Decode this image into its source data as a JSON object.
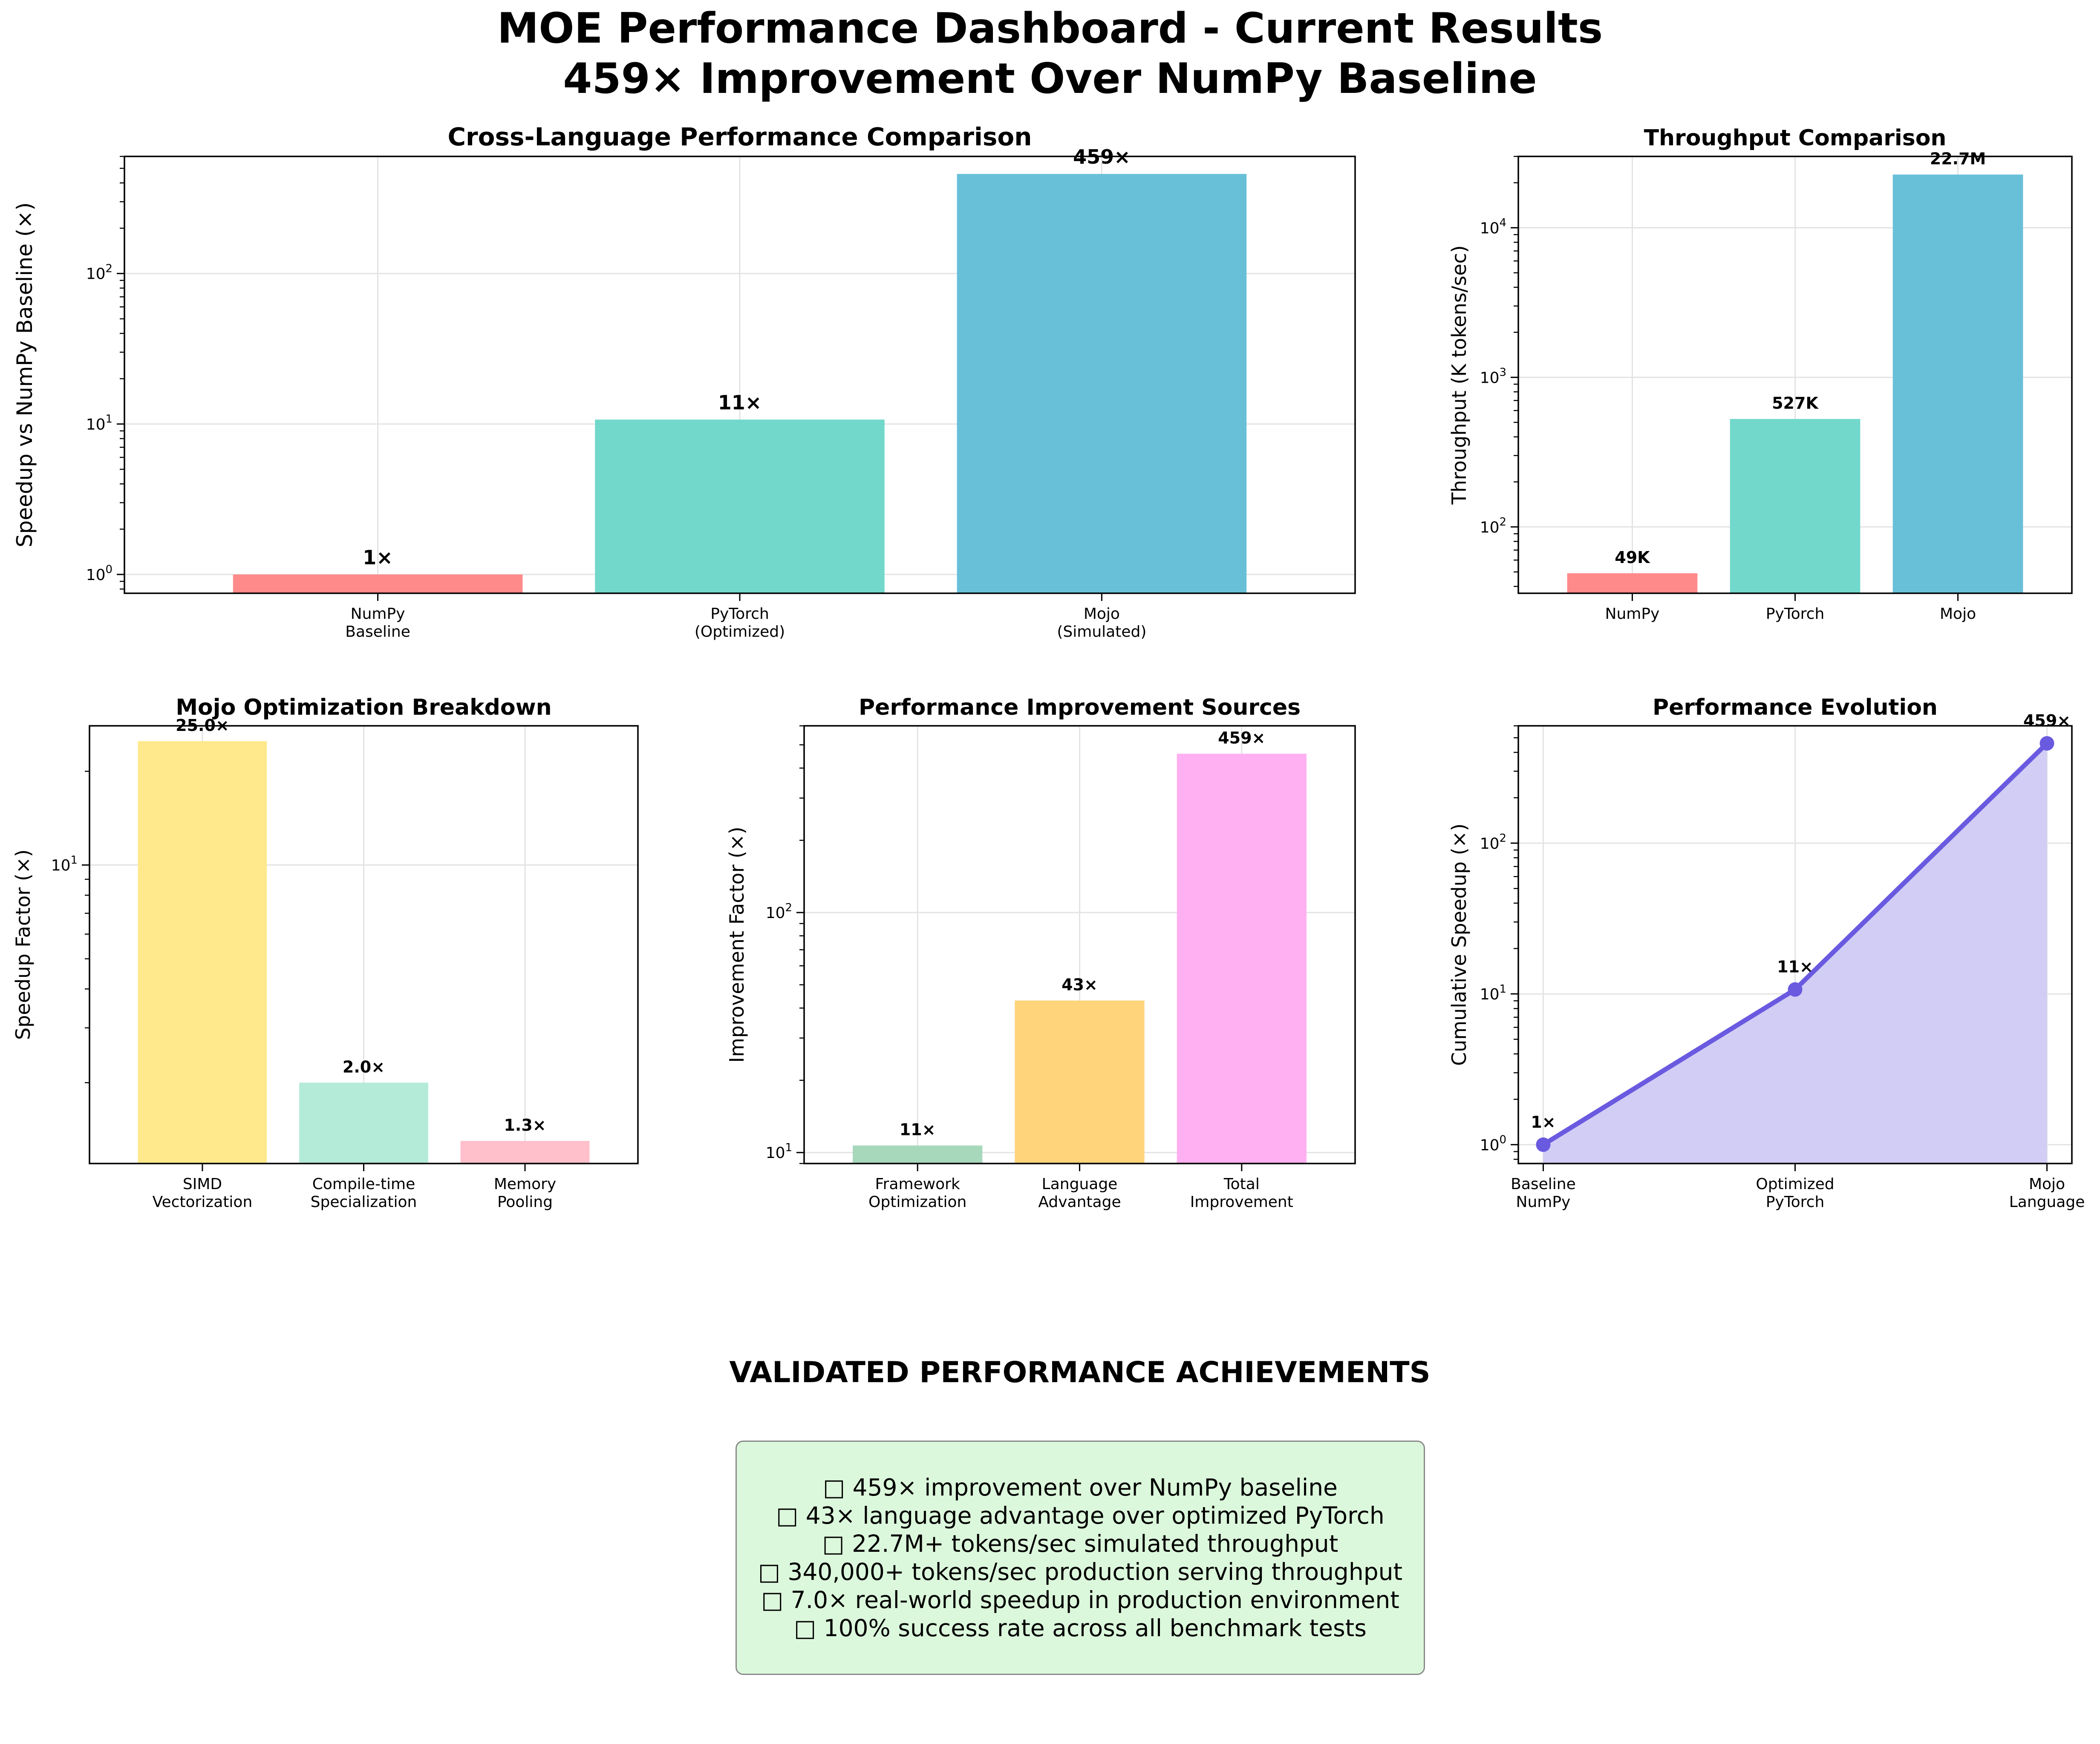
{
  "title_line1": "MOE Performance Dashboard - Current Results",
  "title_line2": "459× Improvement Over NumPy Baseline",
  "achievements": {
    "heading": "VALIDATED PERFORMANCE ACHIEVEMENTS",
    "lines": [
      "□ 459× improvement over NumPy baseline",
      "□ 43× language advantage over optimized PyTorch",
      "□ 22.7M+ tokens/sec simulated throughput",
      "□ 340,000+ tokens/sec production serving throughput",
      "□ 7.0× real-world speedup in production environment",
      "□ 100% success rate across all benchmark tests"
    ]
  },
  "colors": {
    "red": "#ff8a8a",
    "teal": "#72d8cc",
    "blue": "#68c0d8",
    "yellow": "#ffe98c",
    "mint": "#b4ead8",
    "pink": "#ffc0cb",
    "green": "#a8d8bc",
    "orange": "#ffd47a",
    "magenta": "#ffb0f2",
    "purple_line": "#6a5ae0",
    "purple_fill": "#cfcaf4"
  },
  "chart_data": [
    {
      "id": "cross",
      "type": "bar",
      "title": "Cross-Language Performance Comparison",
      "xlabel": "",
      "ylabel": "Speedup vs NumPy Baseline (×)",
      "yscale": "log",
      "ylim": [
        0.75,
        600
      ],
      "yticks": [
        {
          "v": 1,
          "m": "0"
        },
        {
          "v": 10,
          "m": "1"
        },
        {
          "v": 100,
          "m": "2"
        }
      ],
      "categories": [
        "NumPy\nBaseline",
        "PyTorch\n(Optimized)",
        "Mojo\n(Simulated)"
      ],
      "values": [
        1,
        10.7,
        459
      ],
      "labels": [
        "1×",
        "11×",
        "459×"
      ],
      "colors": [
        "#ff8a8a",
        "#72d8cc",
        "#68c0d8"
      ],
      "grid": true
    },
    {
      "id": "throughput",
      "type": "bar",
      "title": "Throughput Comparison",
      "xlabel": "",
      "ylabel": "Throughput (K tokens/sec)",
      "yscale": "log",
      "ylim": [
        36,
        30000
      ],
      "yticks": [
        {
          "v": 100,
          "m": "2"
        },
        {
          "v": 1000,
          "m": "3"
        },
        {
          "v": 10000,
          "m": "4"
        }
      ],
      "categories": [
        "NumPy",
        "PyTorch",
        "Mojo"
      ],
      "values": [
        49,
        527,
        22700
      ],
      "labels": [
        "49K",
        "527K",
        "22.7M"
      ],
      "colors": [
        "#ff8a8a",
        "#72d8cc",
        "#68c0d8"
      ],
      "grid": true
    },
    {
      "id": "breakdown",
      "type": "bar",
      "title": "Mojo Optimization Breakdown",
      "xlabel": "",
      "ylabel": "Speedup Factor (×)",
      "yscale": "log",
      "ylim": [
        1.1,
        28
      ],
      "yticks": [
        {
          "v": 10,
          "m": "1"
        }
      ],
      "categories": [
        "SIMD\nVectorization",
        "Compile-time\nSpecialization",
        "Memory\nPooling"
      ],
      "values": [
        25,
        2,
        1.3
      ],
      "labels": [
        "25.0×",
        "2.0×",
        "1.3×"
      ],
      "colors": [
        "#ffe98c",
        "#b4ead8",
        "#ffc0cb"
      ],
      "grid": true
    },
    {
      "id": "sources",
      "type": "bar",
      "title": "Performance Improvement Sources",
      "xlabel": "",
      "ylabel": "Improvement Factor (×)",
      "yscale": "log",
      "ylim": [
        9,
        600
      ],
      "yticks": [
        {
          "v": 10,
          "m": "1"
        },
        {
          "v": 100,
          "m": "2"
        }
      ],
      "categories": [
        "Framework\nOptimization",
        "Language\nAdvantage",
        "Total\nImprovement"
      ],
      "values": [
        10.7,
        43,
        459
      ],
      "labels": [
        "11×",
        "43×",
        "459×"
      ],
      "colors": [
        "#a8d8bc",
        "#ffd47a",
        "#ffb0f2"
      ],
      "grid": true
    },
    {
      "id": "evolution",
      "type": "area",
      "title": "Performance Evolution",
      "xlabel": "",
      "ylabel": "Cumulative Speedup (×)",
      "yscale": "log",
      "ylim": [
        0.75,
        600
      ],
      "yticks": [
        {
          "v": 1,
          "m": "0"
        },
        {
          "v": 10,
          "m": "1"
        },
        {
          "v": 100,
          "m": "2"
        }
      ],
      "categories": [
        "Baseline\nNumPy",
        "Optimized\nPyTorch",
        "Mojo\nLanguage"
      ],
      "values": [
        1,
        10.7,
        459
      ],
      "labels": [
        "1×",
        "11×",
        "459×"
      ],
      "grid": true
    }
  ]
}
